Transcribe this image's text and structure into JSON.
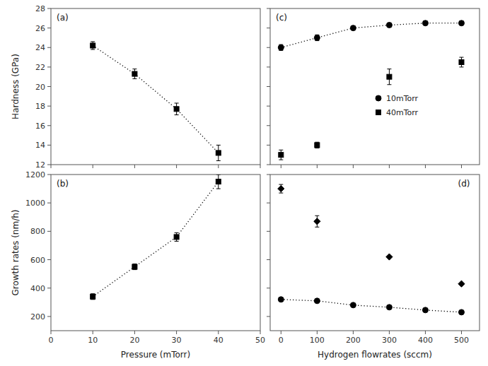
{
  "chart_data": [
    {
      "type": "line",
      "ylabel": "Hardness (GPa)",
      "annotations": [
        "(a)"
      ],
      "series": [
        {
          "x": [
            10,
            20,
            30,
            40
          ],
          "values": [
            24.2,
            21.3,
            17.7,
            13.2
          ],
          "yerr": [
            0.4,
            0.5,
            0.6,
            0.8
          ],
          "color": "black",
          "marker": "square",
          "line_style": "dotted"
        }
      ],
      "xlim": [
        0,
        50
      ],
      "xticks": [
        0,
        10,
        20,
        30,
        40,
        50
      ],
      "ylim": [
        12,
        28
      ],
      "yticks": [
        12,
        14,
        16,
        18,
        20,
        22,
        24,
        26,
        28
      ],
      "tick_labels": "y"
    },
    {
      "type": "line",
      "xlabel": "Pressure (mTorr)",
      "ylabel": "Growth rates (nm/h)",
      "annotations": [
        "(b)"
      ],
      "series": [
        {
          "x": [
            10,
            20,
            30,
            40
          ],
          "values": [
            340,
            550,
            760,
            1150
          ],
          "yerr": [
            20,
            20,
            30,
            50
          ],
          "color": "black",
          "marker": "square",
          "line_style": "dotted"
        }
      ],
      "xlim": [
        0,
        50
      ],
      "xticks": [
        0,
        10,
        20,
        30,
        40,
        50
      ],
      "ylim": [
        100,
        1200
      ],
      "yticks": [
        200,
        400,
        600,
        800,
        1000,
        1200
      ]
    },
    {
      "type": "line",
      "annotations": [
        "(c)"
      ],
      "series": [
        {
          "name": "10mTorr",
          "x": [
            0,
            100,
            200,
            300,
            400,
            500
          ],
          "values": [
            24.0,
            25.0,
            26.0,
            26.3,
            26.5,
            26.5
          ],
          "yerr": [
            0.3,
            0.3,
            0.2,
            0.2,
            0.2,
            0.2
          ],
          "color": "black",
          "marker": "circle",
          "line_style": "dotted"
        },
        {
          "name": "40mTorr",
          "type": "scatter",
          "x": [
            0,
            100,
            300,
            500
          ],
          "values": [
            13.0,
            14.0,
            21.0,
            22.5
          ],
          "yerr": [
            0.5,
            0.3,
            0.8,
            0.5
          ],
          "color": "black",
          "marker": "square"
        }
      ],
      "xlim": [
        -30,
        550
      ],
      "xticks": [
        0,
        100,
        200,
        300,
        400,
        500
      ],
      "ylim": [
        12,
        28
      ],
      "yticks": [
        12,
        14,
        16,
        18,
        20,
        22,
        24,
        26,
        28
      ],
      "legend": "center right",
      "tick_labels": false
    },
    {
      "type": "line",
      "xlabel": "Hydrogen flowrates (sccm)",
      "annotations": [
        "(d)"
      ],
      "series": [
        {
          "type": "scatter",
          "x": [
            0,
            100,
            300,
            500
          ],
          "values": [
            1100,
            870,
            620,
            430
          ],
          "yerr": [
            30,
            40,
            0,
            0
          ],
          "color": "black",
          "marker": "diamond"
        },
        {
          "x": [
            0,
            100,
            200,
            300,
            400,
            500
          ],
          "values": [
            320,
            310,
            280,
            265,
            245,
            230
          ],
          "yerr": [
            10,
            10,
            10,
            10,
            10,
            10
          ],
          "color": "black",
          "marker": "circle",
          "line_style": "dotted"
        }
      ],
      "xlim": [
        -30,
        550
      ],
      "xticks": [
        0,
        100,
        200,
        300,
        400,
        500
      ],
      "ylim": [
        100,
        1200
      ],
      "yticks": [
        200,
        400,
        600,
        800,
        1000,
        1200
      ],
      "tick_labels": "x"
    }
  ]
}
